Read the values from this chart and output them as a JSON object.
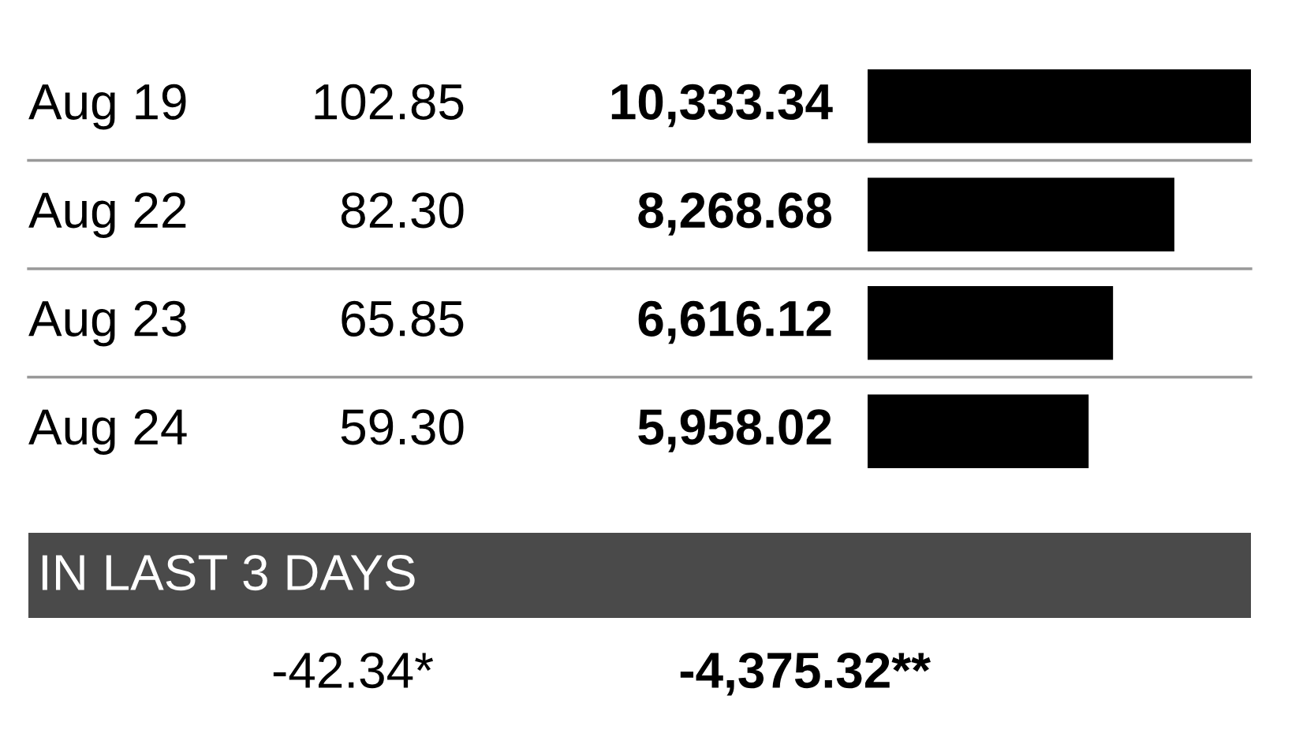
{
  "chart_data": {
    "type": "bar",
    "orientation": "horizontal",
    "categories": [
      "Aug 19",
      "Aug 22",
      "Aug 23",
      "Aug 24"
    ],
    "values": [
      10333.34,
      8268.68,
      6616.12,
      5958.02
    ],
    "value_labels": [
      "10,333.34",
      "8,268.68",
      "6,616.12",
      "5,958.02"
    ],
    "color": "#000000",
    "annotations": [
      "102.85",
      "82.30",
      "65.85",
      "59.30",
      "IN LAST 3 DAYS",
      "-42.34*",
      "-4,375.32**"
    ]
  }
}
